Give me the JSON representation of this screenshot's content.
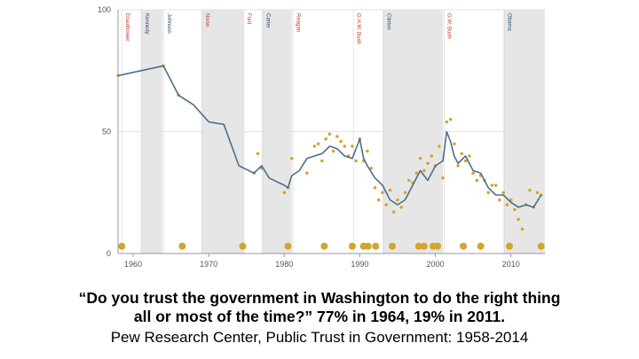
{
  "caption": {
    "line1": "“Do you trust the government in Washington to do the right thing",
    "line2": "all or most of the time?” 77% in 1964, 19% in 2011.",
    "source": "Pew Research Center, Public Trust in Government: 1958-2014"
  },
  "colors": {
    "line": "#4a6f8f",
    "dots": "#d4a52a",
    "shade": "#e6e6e6",
    "democrat_label": "#2f4f6f",
    "republican_label": "#c0392b"
  },
  "chart_data": {
    "type": "line",
    "xlim": [
      1958,
      2014.5
    ],
    "ylim": [
      0,
      100
    ],
    "x_ticks": [
      1960,
      1970,
      1980,
      1990,
      2000,
      2010
    ],
    "y_ticks": [
      0,
      50,
      100
    ],
    "grid": true,
    "shaded_terms": [
      [
        1961,
        1963.9
      ],
      [
        1969,
        1974.6
      ],
      [
        1977,
        1981
      ],
      [
        1993,
        2001
      ],
      [
        2009,
        2014.5
      ]
    ],
    "presidents": [
      {
        "name": "Eisenhower",
        "x": 1958.7,
        "party": "R"
      },
      {
        "name": "Kennedy",
        "x": 1961.3,
        "party": "D"
      },
      {
        "name": "Johnson",
        "x": 1964.2,
        "party": "D"
      },
      {
        "name": "Nixon",
        "x": 1969.3,
        "party": "R"
      },
      {
        "name": "Ford",
        "x": 1974.8,
        "party": "R"
      },
      {
        "name": "Carter",
        "x": 1977.3,
        "party": "D"
      },
      {
        "name": "Reagan",
        "x": 1981.3,
        "party": "R"
      },
      {
        "name": "G.H.W. Bush",
        "x": 1989.3,
        "party": "R"
      },
      {
        "name": "Clinton",
        "x": 1993.3,
        "party": "D"
      },
      {
        "name": "G.W. Bush",
        "x": 2001.3,
        "party": "R"
      },
      {
        "name": "Obama",
        "x": 2009.3,
        "party": "D"
      }
    ],
    "series": [
      {
        "points": [
          [
            1958,
            73
          ],
          [
            1964,
            77
          ],
          [
            1966,
            65
          ],
          [
            1968,
            61
          ],
          [
            1970,
            54
          ],
          [
            1972,
            53
          ],
          [
            1974,
            36
          ],
          [
            1976,
            33
          ],
          [
            1977,
            36
          ],
          [
            1978,
            31
          ],
          [
            1980,
            28
          ],
          [
            1980.5,
            27
          ],
          [
            1981,
            32
          ],
          [
            1982,
            34
          ],
          [
            1983,
            39
          ],
          [
            1984,
            40
          ],
          [
            1985,
            41
          ],
          [
            1986,
            44
          ],
          [
            1987,
            43
          ],
          [
            1988,
            40
          ],
          [
            1989,
            39
          ],
          [
            1990,
            47
          ],
          [
            1990.5,
            39
          ],
          [
            1991,
            36
          ],
          [
            1992,
            31
          ],
          [
            1993,
            28
          ],
          [
            1994,
            22
          ],
          [
            1995,
            20
          ],
          [
            1996,
            22
          ],
          [
            1997,
            28
          ],
          [
            1998,
            34
          ],
          [
            1999,
            30
          ],
          [
            2000,
            36
          ],
          [
            2001,
            38
          ],
          [
            2001.5,
            50
          ],
          [
            2002,
            46
          ],
          [
            2002.5,
            40
          ],
          [
            2003,
            37
          ],
          [
            2004,
            40
          ],
          [
            2005,
            34
          ],
          [
            2006,
            33
          ],
          [
            2007,
            27
          ],
          [
            2008,
            24
          ],
          [
            2009,
            24
          ],
          [
            2010,
            21
          ],
          [
            2011,
            19
          ],
          [
            2012,
            20
          ],
          [
            2013,
            19
          ],
          [
            2014,
            24
          ]
        ]
      }
    ],
    "survey_dots": [
      [
        1958,
        73
      ],
      [
        1964,
        77
      ],
      [
        1966,
        65
      ],
      [
        1976,
        33
      ],
      [
        1976.5,
        41
      ],
      [
        1977,
        35
      ],
      [
        1980,
        25
      ],
      [
        1980.5,
        27
      ],
      [
        1981,
        39
      ],
      [
        1983,
        33
      ],
      [
        1984,
        44
      ],
      [
        1984.5,
        45
      ],
      [
        1985,
        38
      ],
      [
        1985.5,
        47
      ],
      [
        1986,
        49
      ],
      [
        1986.5,
        42
      ],
      [
        1987,
        48
      ],
      [
        1987.5,
        46
      ],
      [
        1988,
        44
      ],
      [
        1988.5,
        40
      ],
      [
        1989,
        44
      ],
      [
        1989.5,
        38
      ],
      [
        1990,
        47
      ],
      [
        1990.5,
        38
      ],
      [
        1991,
        42
      ],
      [
        1991.5,
        35
      ],
      [
        1992,
        27
      ],
      [
        1992.5,
        22
      ],
      [
        1993,
        25
      ],
      [
        1993.5,
        20
      ],
      [
        1994,
        26
      ],
      [
        1994.5,
        17
      ],
      [
        1995,
        22
      ],
      [
        1995.5,
        19
      ],
      [
        1996,
        25
      ],
      [
        1996.5,
        30
      ],
      [
        1997,
        29
      ],
      [
        1997.5,
        33
      ],
      [
        1998,
        39
      ],
      [
        1998.5,
        34
      ],
      [
        1999,
        37
      ],
      [
        1999.5,
        40
      ],
      [
        2000,
        36
      ],
      [
        2000.5,
        44
      ],
      [
        2001,
        31
      ],
      [
        2001.5,
        54
      ],
      [
        2002,
        55
      ],
      [
        2002.5,
        45
      ],
      [
        2003,
        36
      ],
      [
        2003.5,
        41
      ],
      [
        2004,
        38
      ],
      [
        2004.5,
        40
      ],
      [
        2005,
        33
      ],
      [
        2005.5,
        30
      ],
      [
        2006,
        32
      ],
      [
        2006.5,
        30
      ],
      [
        2007,
        25
      ],
      [
        2007.5,
        28
      ],
      [
        2008,
        28
      ],
      [
        2008.5,
        22
      ],
      [
        2009,
        25
      ],
      [
        2009.5,
        20
      ],
      [
        2010,
        22
      ],
      [
        2010.5,
        18
      ],
      [
        2011,
        14
      ],
      [
        2011.5,
        10
      ],
      [
        2012,
        20
      ],
      [
        2012.5,
        26
      ],
      [
        2013,
        19
      ],
      [
        2013.5,
        25
      ],
      [
        2014,
        24
      ]
    ],
    "baseline_dots": [
      1958.5,
      1966.5,
      1974.5,
      1980.5,
      1985.3,
      1989,
      1990.5,
      1991.1,
      1992.1,
      1994.3,
      1997.8,
      1998.5,
      1999.7,
      2000.3,
      2003.7,
      2006,
      2009.8,
      2014
    ]
  }
}
